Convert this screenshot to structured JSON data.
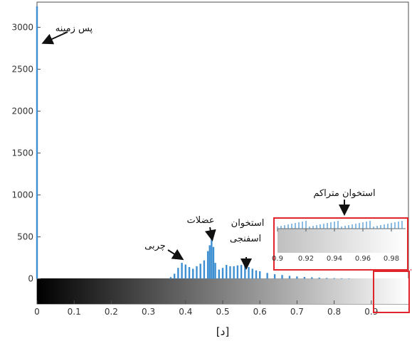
{
  "chart_data": {
    "type": "bar",
    "title": "",
    "xlabel": "",
    "ylabel": "",
    "xlim": [
      0,
      1
    ],
    "ylim": [
      -300,
      3300
    ],
    "x_ticks": [
      "0",
      "0.1",
      "0.2",
      "0.3",
      "0.4",
      "0.5",
      "0.6",
      "0.7",
      "0.8",
      "0.9"
    ],
    "y_ticks": [
      "0",
      "500",
      "1000",
      "1500",
      "2000",
      "2500",
      "3000"
    ],
    "bar_color": "#3d8fd1",
    "colorbar": {
      "from": "#000000",
      "to": "#ffffff",
      "range": [
        0,
        1
      ]
    },
    "series": [
      {
        "x": [
          0.0,
          0.36,
          0.37,
          0.38,
          0.39,
          0.4,
          0.41,
          0.42,
          0.43,
          0.44,
          0.45,
          0.46,
          0.465,
          0.47,
          0.475,
          0.48,
          0.49,
          0.5,
          0.51,
          0.52,
          0.53,
          0.54,
          0.55,
          0.56,
          0.57,
          0.58,
          0.59,
          0.6,
          0.62,
          0.64,
          0.66,
          0.68,
          0.7,
          0.72,
          0.74,
          0.76,
          0.78,
          0.8,
          0.82,
          0.84
        ],
        "values": [
          3250,
          20,
          60,
          130,
          190,
          170,
          140,
          120,
          150,
          180,
          220,
          330,
          400,
          470,
          380,
          190,
          110,
          130,
          165,
          150,
          150,
          160,
          165,
          155,
          140,
          120,
          100,
          90,
          70,
          55,
          45,
          35,
          28,
          22,
          18,
          14,
          10,
          8,
          6,
          4
        ]
      }
    ],
    "annotations": [
      {
        "text": "پس زمینه",
        "x": 0.0,
        "y": 3000
      },
      {
        "text": "چربی",
        "x": 0.38,
        "y": 200
      },
      {
        "text": "عضلات",
        "x": 0.47,
        "y": 470
      },
      {
        "text": "استخوان",
        "x": 0.56,
        "y": 160
      },
      {
        "text": "اسفنجی",
        "x": 0.56,
        "y": 160
      },
      {
        "text": "استخوان متراکم",
        "x": 0.945,
        "y": 15
      }
    ],
    "inset": {
      "xlim": [
        0.9,
        0.99
      ],
      "x_ticks": [
        "0.9",
        "0.92",
        "0.94",
        "0.96",
        "0.98"
      ],
      "source_range": [
        0.9,
        1.0
      ]
    },
    "highlight_color": "#e0262c"
  },
  "caption": "[د]"
}
